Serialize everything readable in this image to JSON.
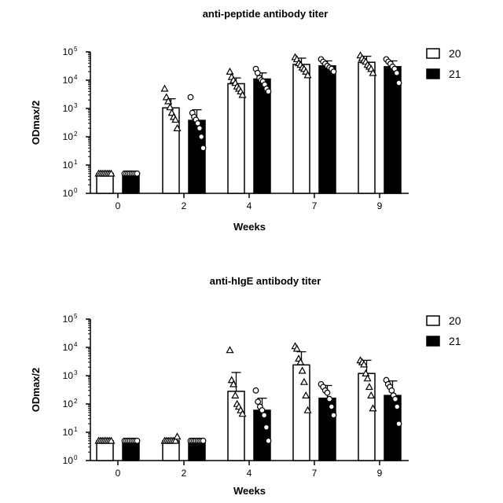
{
  "chart_data": [
    {
      "type": "bar",
      "title": "anti-peptide antibody titer",
      "xlabel": "Weeks",
      "ylabel": "ODmax/2",
      "yscale": "log",
      "ylim": [
        1,
        100000
      ],
      "yticks": [
        {
          "base": "10",
          "exp": "0",
          "value": 1
        },
        {
          "base": "10",
          "exp": "1",
          "value": 10
        },
        {
          "base": "10",
          "exp": "2",
          "value": 100
        },
        {
          "base": "10",
          "exp": "3",
          "value": 1000
        },
        {
          "base": "10",
          "exp": "4",
          "value": 10000
        },
        {
          "base": "10",
          "exp": "5",
          "value": 100000
        }
      ],
      "categories": [
        "0",
        "2",
        "4",
        "7",
        "9"
      ],
      "legend_position": "right",
      "series": [
        {
          "name": "20",
          "fill": "#ffffff",
          "marker": "triangle",
          "values": [
            5,
            1050,
            7500,
            36000,
            43000
          ],
          "err_high": [
            5,
            2200,
            12000,
            60000,
            70000
          ],
          "points": [
            [
              5,
              5,
              5,
              5,
              5,
              5,
              5,
              5
            ],
            [
              5000,
              2500,
              1800,
              1100,
              700,
              500,
              400,
              200
            ],
            [
              20000,
              13000,
              10000,
              8000,
              6000,
              5000,
              4000,
              3000
            ],
            [
              65000,
              55000,
              40000,
              35000,
              28000,
              25000,
              20000,
              15000
            ],
            [
              75000,
              60000,
              50000,
              45000,
              35000,
              30000,
              25000,
              18000
            ]
          ]
        },
        {
          "name": "21",
          "fill": "#000000",
          "marker": "circle",
          "values": [
            5,
            380,
            11000,
            32000,
            30000
          ],
          "err_high": [
            5,
            900,
            18000,
            48000,
            48000
          ],
          "points": [
            [
              5,
              5,
              5,
              5,
              5,
              5,
              5,
              5
            ],
            [
              2500,
              700,
              500,
              400,
              300,
              200,
              100,
              40
            ],
            [
              25000,
              18000,
              12000,
              10000,
              9000,
              7000,
              5000,
              4000
            ],
            [
              55000,
              45000,
              38000,
              32000,
              28000,
              25000,
              20000
            ],
            [
              55000,
              45000,
              38000,
              30000,
              25000,
              18000,
              8000
            ]
          ]
        }
      ]
    },
    {
      "type": "bar",
      "title": "anti-hIgE antibody titer",
      "xlabel": "Weeks",
      "ylabel": "ODmax/2",
      "yscale": "log",
      "ylim": [
        1,
        100000
      ],
      "yticks": [
        {
          "base": "10",
          "exp": "0",
          "value": 1
        },
        {
          "base": "10",
          "exp": "1",
          "value": 10
        },
        {
          "base": "10",
          "exp": "2",
          "value": 100
        },
        {
          "base": "10",
          "exp": "3",
          "value": 1000
        },
        {
          "base": "10",
          "exp": "4",
          "value": 10000
        },
        {
          "base": "10",
          "exp": "5",
          "value": 100000
        }
      ],
      "categories": [
        "0",
        "2",
        "4",
        "7",
        "9"
      ],
      "legend_position": "right",
      "series": [
        {
          "name": "20",
          "fill": "#ffffff",
          "marker": "triangle",
          "values": [
            5,
            5,
            280,
            2400,
            1200
          ],
          "err_high": [
            5,
            5.6,
            1300,
            7000,
            3500
          ],
          "points": [
            [
              5,
              5,
              5,
              5,
              5,
              5,
              5,
              5
            ],
            [
              5,
              5,
              5,
              5,
              5,
              5,
              5,
              7
            ],
            [
              8000,
              700,
              500,
              200,
              100,
              80,
              60,
              45
            ],
            [
              11000,
              9000,
              4000,
              3000,
              1500,
              600,
              200,
              60
            ],
            [
              3500,
              3000,
              2500,
              1200,
              800,
              400,
              200,
              70
            ]
          ]
        },
        {
          "name": "21",
          "fill": "#000000",
          "marker": "circle",
          "values": [
            5,
            5,
            60,
            160,
            200
          ],
          "err_high": [
            5,
            5,
            160,
            450,
            650
          ],
          "points": [
            [
              5,
              5,
              5,
              5,
              5,
              5,
              5,
              5
            ],
            [
              5,
              5,
              5,
              5,
              5,
              5,
              5,
              5
            ],
            [
              300,
              120,
              80,
              60,
              40,
              15,
              5
            ],
            [
              500,
              400,
              300,
              250,
              150,
              80,
              40
            ],
            [
              700,
              500,
              400,
              300,
              200,
              150,
              80,
              20
            ]
          ]
        }
      ]
    }
  ]
}
